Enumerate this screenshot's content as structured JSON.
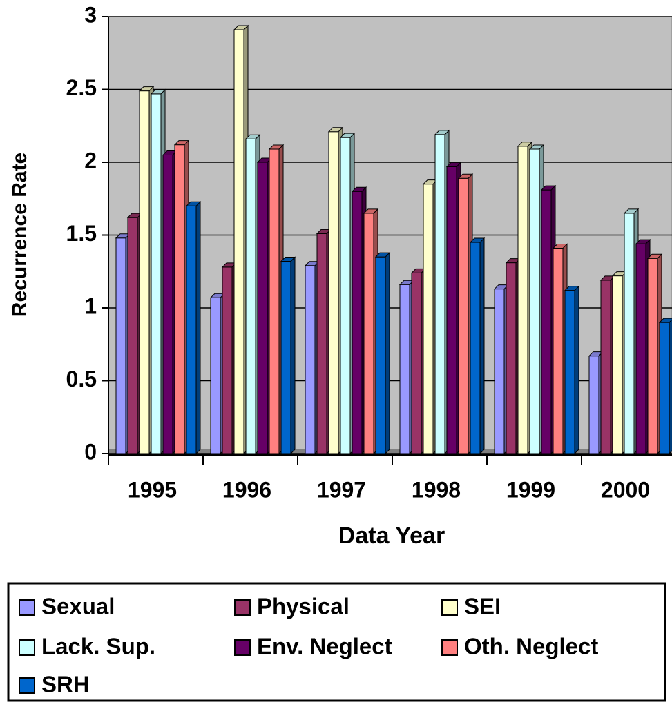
{
  "chart_data": {
    "type": "bar",
    "x_label": "Data Year",
    "y_label": "Recurrence Rate",
    "categories": [
      "1995",
      "1996",
      "1997",
      "1998",
      "1999",
      "2000"
    ],
    "series": [
      {
        "name": "Sexual",
        "color": "#9999ff",
        "values": [
          1.48,
          1.07,
          1.29,
          1.16,
          1.13,
          0.67
        ]
      },
      {
        "name": "Physical",
        "color": "#993366",
        "values": [
          1.62,
          1.28,
          1.51,
          1.24,
          1.31,
          1.19
        ]
      },
      {
        "name": "SEI",
        "color": "#ffffcc",
        "values": [
          2.49,
          2.91,
          2.21,
          1.85,
          2.11,
          1.22
        ]
      },
      {
        "name": "Lack. Sup.",
        "color": "#ccffff",
        "values": [
          2.47,
          2.16,
          2.17,
          2.19,
          2.09,
          1.65
        ]
      },
      {
        "name": "Env. Neglect",
        "color": "#660066",
        "values": [
          2.05,
          2.0,
          1.8,
          1.97,
          1.81,
          1.44
        ]
      },
      {
        "name": "Oth. Neglect",
        "color": "#ff8080",
        "values": [
          2.12,
          2.09,
          1.65,
          1.89,
          1.41,
          1.34
        ]
      },
      {
        "name": "SRH",
        "color": "#0066cc",
        "values": [
          1.7,
          1.32,
          1.35,
          1.45,
          1.12,
          0.9
        ]
      }
    ],
    "ylim": [
      0,
      3
    ],
    "yticks": [
      0,
      0.5,
      1,
      1.5,
      2,
      2.5,
      3
    ],
    "grid": true,
    "legend": "bottom"
  }
}
